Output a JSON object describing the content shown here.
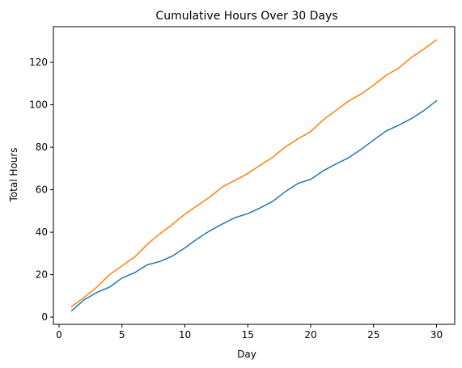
{
  "chart_data": {
    "type": "line",
    "title": "Cumulative Hours Over 30 Days",
    "xlabel": "Day",
    "ylabel": "Total Hours",
    "xlim": [
      -0.45,
      31.45
    ],
    "ylim": [
      -3.4,
      136.8
    ],
    "xticks": [
      0,
      5,
      10,
      15,
      20,
      25,
      30
    ],
    "yticks": [
      0,
      20,
      40,
      60,
      80,
      100,
      120
    ],
    "grid": false,
    "legend": "none",
    "x": [
      1,
      2,
      3,
      4,
      5,
      6,
      7,
      8,
      9,
      10,
      11,
      12,
      13,
      14,
      15,
      16,
      17,
      18,
      19,
      20,
      21,
      22,
      23,
      24,
      25,
      26,
      27,
      28,
      29,
      30
    ],
    "series": [
      {
        "color": "#1f77b4",
        "values": [
          3.0,
          8.2,
          11.6,
          14.1,
          18.4,
          20.9,
          24.6,
          26.2,
          28.7,
          32.6,
          36.9,
          40.7,
          43.9,
          46.9,
          48.7,
          51.5,
          54.6,
          59.2,
          63.0,
          64.9,
          68.9,
          72.1,
          75.0,
          79.0,
          83.4,
          87.7,
          90.4,
          93.5,
          97.3,
          101.9
        ]
      },
      {
        "color": "#ff7f0e",
        "values": [
          5.0,
          9.3,
          14.1,
          19.9,
          24.1,
          28.3,
          34.2,
          39.2,
          43.6,
          48.5,
          52.6,
          56.6,
          61.4,
          64.5,
          67.6,
          71.6,
          75.4,
          80.2,
          84.0,
          87.4,
          92.9,
          97.3,
          101.7,
          105.1,
          109.2,
          113.9,
          117.3,
          122.3,
          126.3,
          130.6
        ]
      }
    ]
  }
}
